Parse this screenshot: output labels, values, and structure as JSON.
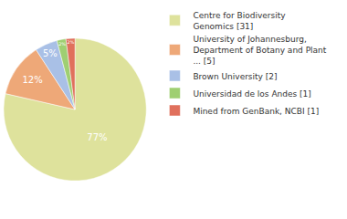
{
  "chart_data": {
    "type": "pie",
    "categories": [
      "Centre for Biodiversity\nGenomics [31]",
      "University of Johannesburg,\nDepartment of Botany and Plant\n... [5]",
      "Brown University [2]",
      "Universidad de los Andes [1]",
      "Mined from GenBank, NCBI [1]"
    ],
    "values": [
      77,
      12,
      5,
      2,
      2
    ],
    "value_labels": [
      "77%",
      "12%",
      "5%",
      "2%",
      "2%"
    ],
    "colors": [
      "#dee29c",
      "#eea878",
      "#a9c0e6",
      "#9fcf72",
      "#e0705c"
    ],
    "data_labels": true,
    "legend": "right"
  }
}
